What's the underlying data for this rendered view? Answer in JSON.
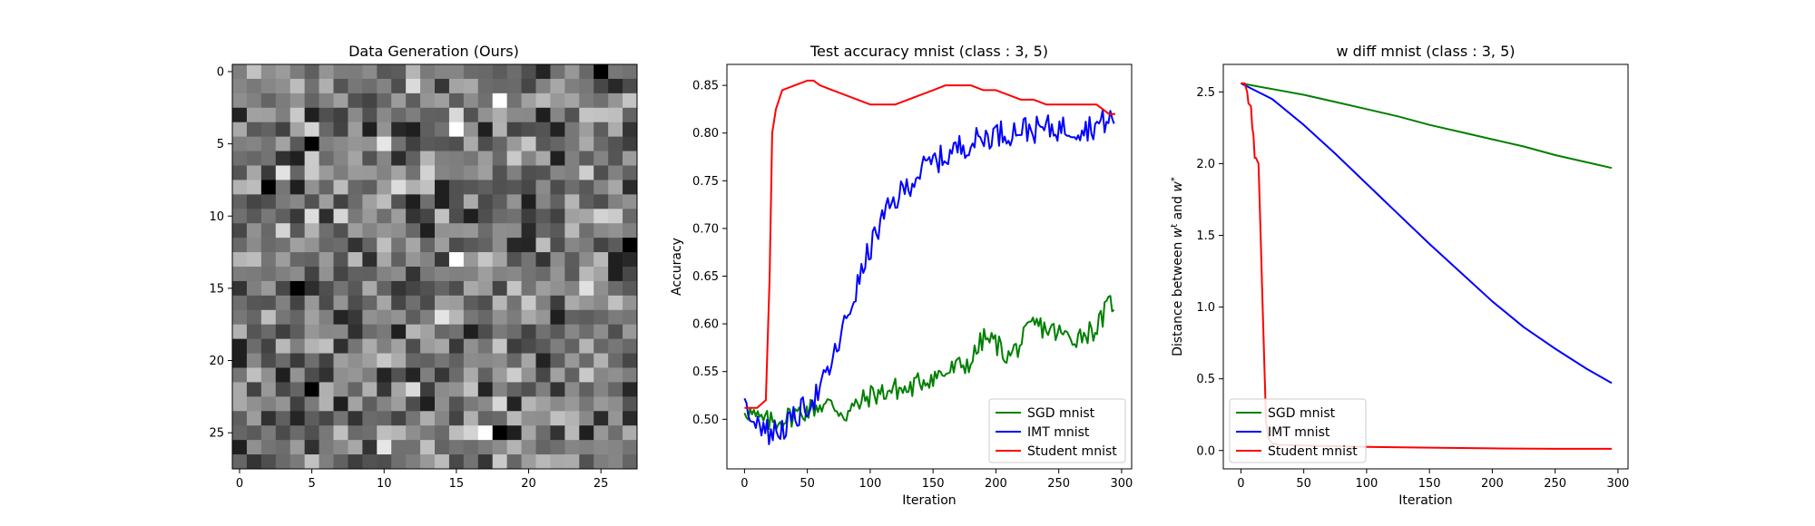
{
  "chart_data": [
    {
      "type": "heatmap",
      "title": "Data Generation (Ours)",
      "xlabel": "",
      "ylabel": "",
      "grid": false,
      "colormap": "gray",
      "value_range": [
        0,
        1
      ],
      "rows": 28,
      "cols": 28,
      "xlim": [
        -0.5,
        27.5
      ],
      "ylim": [
        27.5,
        -0.5
      ],
      "xticks": [
        0,
        5,
        10,
        15,
        20,
        25
      ],
      "yticks": [
        0,
        5,
        10,
        15,
        20,
        25
      ],
      "notable_pixels": [
        {
          "row": 0,
          "col": 25,
          "value": 0.0
        },
        {
          "row": 5,
          "col": 5,
          "value": 0.0
        },
        {
          "row": 8,
          "col": 2,
          "value": 0.0
        },
        {
          "row": 12,
          "col": 27,
          "value": 0.0
        },
        {
          "row": 15,
          "col": 4,
          "value": 0.0
        },
        {
          "row": 22,
          "col": 5,
          "value": 0.0
        },
        {
          "row": 25,
          "col": 18,
          "value": 0.0
        },
        {
          "row": 2,
          "col": 18,
          "value": 1.0
        },
        {
          "row": 4,
          "col": 15,
          "value": 1.0
        },
        {
          "row": 13,
          "col": 15,
          "value": 1.0
        },
        {
          "row": 25,
          "col": 17,
          "value": 1.0
        }
      ]
    },
    {
      "type": "line",
      "title": "Test accuracy mnist (class : 3, 5)",
      "xlabel": "Iteration",
      "ylabel": "Accuracy",
      "xlim": [
        -14,
        308
      ],
      "ylim": [
        0.448,
        0.872
      ],
      "xticks": [
        0,
        50,
        100,
        150,
        200,
        250,
        300
      ],
      "yticks": [
        0.5,
        0.55,
        0.6,
        0.65,
        0.7,
        0.75,
        0.8,
        0.85
      ],
      "grid": false,
      "legend_position": "lower-right",
      "series": [
        {
          "name": "SGD mnist",
          "color": "#008000",
          "noise": 0.012,
          "x": [
            0,
            10,
            20,
            30,
            40,
            50,
            60,
            70,
            80,
            90,
            100,
            110,
            120,
            130,
            140,
            150,
            160,
            170,
            180,
            190,
            200,
            210,
            220,
            230,
            240,
            250,
            260,
            270,
            280,
            290,
            295
          ],
          "values": [
            0.512,
            0.5,
            0.497,
            0.5,
            0.505,
            0.51,
            0.515,
            0.515,
            0.505,
            0.515,
            0.525,
            0.528,
            0.532,
            0.53,
            0.54,
            0.545,
            0.548,
            0.555,
            0.56,
            0.585,
            0.58,
            0.565,
            0.58,
            0.6,
            0.595,
            0.59,
            0.585,
            0.59,
            0.595,
            0.62,
            0.625
          ]
        },
        {
          "name": "IMT mnist",
          "color": "#0000ff",
          "noise": 0.014,
          "x": [
            0,
            10,
            20,
            30,
            40,
            50,
            60,
            70,
            80,
            90,
            100,
            110,
            120,
            130,
            140,
            150,
            160,
            170,
            180,
            190,
            200,
            210,
            220,
            230,
            240,
            250,
            260,
            270,
            280,
            290,
            295
          ],
          "values": [
            0.512,
            0.5,
            0.485,
            0.49,
            0.5,
            0.515,
            0.53,
            0.56,
            0.6,
            0.64,
            0.68,
            0.71,
            0.73,
            0.745,
            0.76,
            0.77,
            0.775,
            0.785,
            0.79,
            0.795,
            0.8,
            0.8,
            0.805,
            0.803,
            0.805,
            0.805,
            0.805,
            0.805,
            0.808,
            0.815,
            0.812
          ]
        },
        {
          "name": "Student mnist",
          "color": "#ff0000",
          "noise": 0,
          "x": [
            0,
            10,
            17,
            20,
            22,
            25,
            30,
            40,
            50,
            55,
            60,
            70,
            80,
            90,
            100,
            120,
            130,
            140,
            150,
            160,
            170,
            180,
            190,
            200,
            210,
            220,
            230,
            240,
            250,
            260,
            270,
            280,
            290,
            295
          ],
          "values": [
            0.512,
            0.512,
            0.52,
            0.65,
            0.8,
            0.825,
            0.845,
            0.85,
            0.855,
            0.855,
            0.85,
            0.845,
            0.84,
            0.835,
            0.83,
            0.83,
            0.835,
            0.84,
            0.845,
            0.85,
            0.85,
            0.85,
            0.845,
            0.845,
            0.84,
            0.835,
            0.835,
            0.83,
            0.83,
            0.83,
            0.83,
            0.83,
            0.82,
            0.82
          ]
        }
      ]
    },
    {
      "type": "line",
      "title": "w diff mnist (class : 3, 5)",
      "xlabel": "Iteration",
      "ylabel": "Distance between w^t and w^*",
      "ylabel_parts": [
        "Distance between ",
        "w",
        "t",
        " and ",
        "w",
        "*"
      ],
      "xlim": [
        -14,
        308
      ],
      "ylim": [
        -0.128,
        2.692
      ],
      "xticks": [
        0,
        50,
        100,
        150,
        200,
        250,
        300
      ],
      "yticks": [
        0.0,
        0.5,
        1.0,
        1.5,
        2.0,
        2.5
      ],
      "grid": false,
      "legend_position": "lower-left",
      "series": [
        {
          "name": "SGD mnist",
          "color": "#008000",
          "noise": 0,
          "x": [
            0,
            25,
            50,
            75,
            100,
            125,
            150,
            175,
            200,
            225,
            250,
            275,
            295
          ],
          "values": [
            2.56,
            2.52,
            2.48,
            2.43,
            2.38,
            2.33,
            2.27,
            2.22,
            2.17,
            2.12,
            2.06,
            2.01,
            1.97
          ]
        },
        {
          "name": "IMT mnist",
          "color": "#0000ff",
          "noise": 0,
          "x": [
            0,
            25,
            50,
            75,
            100,
            125,
            150,
            175,
            200,
            225,
            250,
            275,
            295
          ],
          "values": [
            2.56,
            2.45,
            2.27,
            2.07,
            1.86,
            1.65,
            1.44,
            1.24,
            1.04,
            0.86,
            0.71,
            0.57,
            0.47
          ]
        },
        {
          "name": "Student mnist",
          "color": "#ff0000",
          "noise": 0,
          "x": [
            0,
            3,
            5,
            6,
            8,
            9,
            10,
            11,
            12,
            14,
            15,
            16,
            17,
            18,
            19,
            20,
            22,
            25,
            30,
            50,
            100,
            150,
            200,
            250,
            295
          ],
          "values": [
            2.56,
            2.56,
            2.5,
            2.42,
            2.4,
            2.25,
            2.2,
            2.04,
            2.04,
            2.0,
            1.7,
            1.4,
            1.1,
            0.8,
            0.5,
            0.2,
            0.08,
            0.05,
            0.04,
            0.035,
            0.025,
            0.02,
            0.015,
            0.012,
            0.012
          ]
        }
      ]
    }
  ]
}
